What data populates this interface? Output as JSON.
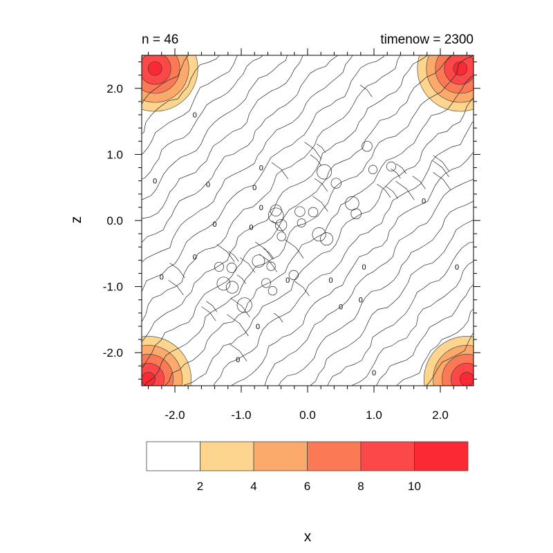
{
  "chart_data": {
    "type": "heatmap",
    "title_left": "n = 46",
    "title_right": "timenow = 2300",
    "xlabel": "x",
    "ylabel": "z",
    "xlim": [
      -2.5,
      2.5
    ],
    "ylim": [
      -2.5,
      2.5
    ],
    "xticks": [
      -2.0,
      -1.0,
      0.0,
      1.0,
      2.0
    ],
    "xtick_labels": [
      "-2.0",
      "-1.0",
      "0.0",
      "1.0",
      "2.0"
    ],
    "yticks": [
      2.0,
      1.0,
      0.0,
      -1.0,
      -2.0
    ],
    "ytick_labels": [
      "2.0",
      "1.0",
      "0.0",
      "-1.0",
      "-2.0"
    ],
    "contour_line_labels": [
      "0",
      "0",
      "0",
      "0",
      "0",
      "0",
      "0",
      "0",
      "0",
      "0",
      "0",
      "0",
      "0",
      "0",
      "0",
      "0",
      "0",
      "0",
      "0",
      "0"
    ],
    "colorbar": {
      "levels": [
        2,
        4,
        6,
        8,
        10
      ],
      "level_labels": [
        "2",
        "4",
        "6",
        "8",
        "10"
      ],
      "colors": [
        "#ffffff",
        "#fdd58e",
        "#fca96c",
        "#fb7a55",
        "#fc4848",
        "#fa2a35"
      ]
    },
    "peaks": [
      {
        "name": "top-left",
        "x": -2.3,
        "z": 2.3,
        "max": 11
      },
      {
        "name": "top-right",
        "x": 2.3,
        "z": 2.3,
        "max": 11
      },
      {
        "name": "bottom-left",
        "x": -2.4,
        "z": -2.4,
        "max": 10
      },
      {
        "name": "bottom-right",
        "x": 2.4,
        "z": -2.4,
        "max": 11
      }
    ]
  }
}
